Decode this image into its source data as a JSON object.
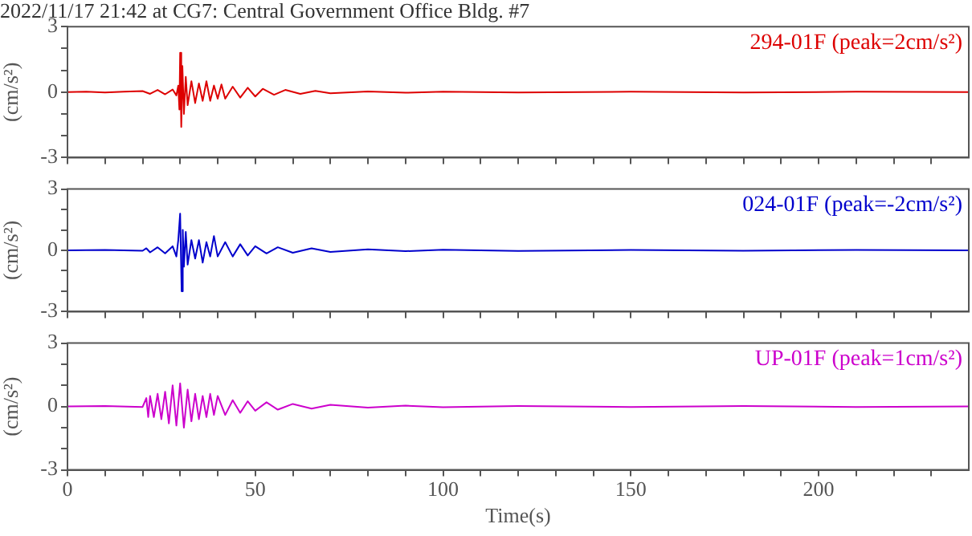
{
  "chart_data": [
    {
      "type": "line",
      "title": "2022/11/17 21:42 at CG7: Central Government Office Bldg. #7",
      "ylabel": "(cm/s²)",
      "annotations": [
        "294-01F (peak=2cm/s²)"
      ],
      "tick_labels": "y",
      "x": [
        0,
        5,
        10,
        15,
        20,
        22,
        24,
        26,
        28,
        29,
        29.5,
        29.8,
        30,
        30.3,
        30.6,
        31,
        31.5,
        32,
        33,
        34,
        35,
        36,
        37,
        38,
        39,
        40,
        41,
        42,
        44,
        46,
        48,
        50,
        52,
        55,
        58,
        62,
        66,
        70,
        80,
        90,
        100,
        120,
        150,
        180,
        210,
        240
      ],
      "series": [
        {
          "color": "#dd0000",
          "values": [
            0,
            0.02,
            -0.02,
            0.02,
            0.05,
            -0.08,
            0.1,
            -0.1,
            0.12,
            -0.15,
            0.3,
            -0.8,
            1.8,
            -1.6,
            1.2,
            -1.0,
            0.7,
            -0.6,
            0.5,
            -0.5,
            0.4,
            -0.4,
            0.5,
            -0.4,
            0.3,
            -0.3,
            0.35,
            -0.3,
            0.25,
            -0.25,
            0.2,
            -0.2,
            0.15,
            -0.12,
            0.1,
            -0.08,
            0.06,
            -0.05,
            0.03,
            -0.03,
            0.02,
            -0.02,
            0.02,
            -0.02,
            0.02,
            0
          ]
        }
      ],
      "xlim": [
        0,
        240
      ],
      "xticks": [
        0,
        {
          "value": 10,
          "label": null
        },
        {
          "value": 20,
          "label": null
        },
        {
          "value": 30,
          "label": null
        },
        {
          "value": 40,
          "label": null
        },
        50,
        {
          "value": 60,
          "label": null
        },
        {
          "value": 70,
          "label": null
        },
        {
          "value": 80,
          "label": null
        },
        {
          "value": 90,
          "label": null
        },
        100,
        {
          "value": 110,
          "label": null
        },
        {
          "value": 120,
          "label": null
        },
        {
          "value": 130,
          "label": null
        },
        {
          "value": 140,
          "label": null
        },
        150,
        {
          "value": 160,
          "label": null
        },
        {
          "value": 170,
          "label": null
        },
        {
          "value": 180,
          "label": null
        },
        {
          "value": 190,
          "label": null
        },
        200,
        {
          "value": 210,
          "label": null
        },
        {
          "value": 220,
          "label": null
        },
        {
          "value": 230,
          "label": null
        }
      ],
      "ylim": [
        -3,
        3
      ],
      "yticks": [
        -3,
        {
          "value": -2,
          "label": null
        },
        {
          "value": -1,
          "label": null
        },
        0,
        {
          "value": 1,
          "label": null
        },
        {
          "value": 2,
          "label": null
        },
        3
      ]
    },
    {
      "type": "line",
      "ylabel": "(cm/s²)",
      "annotations": [
        "024-01F (peak=-2cm/s²)"
      ],
      "tick_labels": "y",
      "x": [
        0,
        10,
        20,
        21,
        22,
        24,
        26,
        28,
        29,
        29.5,
        30,
        30.4,
        30.7,
        31,
        31.5,
        32,
        33,
        34,
        35,
        36,
        37,
        38,
        39,
        40,
        42,
        44,
        46,
        48,
        50,
        53,
        56,
        60,
        65,
        70,
        80,
        90,
        100,
        120,
        150,
        180,
        210,
        240
      ],
      "series": [
        {
          "color": "#0000cc",
          "values": [
            0,
            0.02,
            -0.02,
            0.1,
            -0.1,
            0.15,
            -0.15,
            0.2,
            -0.3,
            0.5,
            1.8,
            -2.0,
            1.0,
            -0.8,
            0.9,
            -0.7,
            0.5,
            -0.4,
            0.5,
            -0.6,
            0.4,
            -0.3,
            0.7,
            -0.3,
            0.4,
            -0.3,
            0.3,
            -0.25,
            0.2,
            -0.15,
            0.15,
            -0.12,
            0.1,
            -0.08,
            0.05,
            -0.04,
            0.03,
            -0.03,
            0.02,
            -0.02,
            0.02,
            0
          ]
        }
      ],
      "xlim": [
        0,
        240
      ],
      "xticks": [
        0,
        {
          "value": 10,
          "label": null
        },
        {
          "value": 20,
          "label": null
        },
        {
          "value": 30,
          "label": null
        },
        {
          "value": 40,
          "label": null
        },
        50,
        {
          "value": 60,
          "label": null
        },
        {
          "value": 70,
          "label": null
        },
        {
          "value": 80,
          "label": null
        },
        {
          "value": 90,
          "label": null
        },
        100,
        {
          "value": 110,
          "label": null
        },
        {
          "value": 120,
          "label": null
        },
        {
          "value": 130,
          "label": null
        },
        {
          "value": 140,
          "label": null
        },
        150,
        {
          "value": 160,
          "label": null
        },
        {
          "value": 170,
          "label": null
        },
        {
          "value": 180,
          "label": null
        },
        {
          "value": 190,
          "label": null
        },
        200,
        {
          "value": 210,
          "label": null
        },
        {
          "value": 220,
          "label": null
        },
        {
          "value": 230,
          "label": null
        }
      ],
      "ylim": [
        -3,
        3
      ],
      "yticks": [
        -3,
        {
          "value": -2,
          "label": null
        },
        {
          "value": -1,
          "label": null
        },
        0,
        {
          "value": 1,
          "label": null
        },
        {
          "value": 2,
          "label": null
        },
        3
      ]
    },
    {
      "type": "line",
      "xlabel": "Time(s)",
      "ylabel": "(cm/s²)",
      "annotations": [
        "UP-01F (peak=1cm/s²)"
      ],
      "x": [
        0,
        10,
        20,
        21,
        21.5,
        22,
        23,
        24,
        25,
        26,
        27,
        28,
        29,
        30,
        31,
        32,
        33,
        34,
        35,
        36,
        37,
        38,
        39,
        40,
        42,
        44,
        46,
        48,
        50,
        53,
        56,
        60,
        65,
        70,
        80,
        90,
        100,
        120,
        150,
        180,
        210,
        240
      ],
      "series": [
        {
          "color": "#cc00cc",
          "values": [
            0,
            0.02,
            -0.02,
            0.4,
            -0.5,
            0.5,
            -0.5,
            0.6,
            -0.6,
            0.7,
            -0.8,
            1.0,
            -0.9,
            1.1,
            -1.0,
            0.8,
            -0.7,
            0.6,
            -0.6,
            0.5,
            -0.5,
            0.6,
            -0.4,
            0.5,
            -0.4,
            0.3,
            -0.3,
            0.25,
            -0.2,
            0.2,
            -0.15,
            0.12,
            -0.1,
            0.08,
            -0.05,
            0.04,
            -0.03,
            0.02,
            -0.02,
            0.02,
            -0.02,
            0
          ]
        }
      ],
      "xlim": [
        0,
        240
      ],
      "xticks": [
        0,
        {
          "value": 10,
          "label": null
        },
        {
          "value": 20,
          "label": null
        },
        {
          "value": 30,
          "label": null
        },
        {
          "value": 40,
          "label": null
        },
        50,
        {
          "value": 60,
          "label": null
        },
        {
          "value": 70,
          "label": null
        },
        {
          "value": 80,
          "label": null
        },
        {
          "value": 90,
          "label": null
        },
        100,
        {
          "value": 110,
          "label": null
        },
        {
          "value": 120,
          "label": null
        },
        {
          "value": 130,
          "label": null
        },
        {
          "value": 140,
          "label": null
        },
        150,
        {
          "value": 160,
          "label": null
        },
        {
          "value": 170,
          "label": null
        },
        {
          "value": 180,
          "label": null
        },
        {
          "value": 190,
          "label": null
        },
        200,
        {
          "value": 210,
          "label": null
        },
        {
          "value": 220,
          "label": null
        },
        {
          "value": 230,
          "label": null
        }
      ],
      "ylim": [
        -3,
        3
      ],
      "yticks": [
        -3,
        {
          "value": -2,
          "label": null
        },
        {
          "value": -1,
          "label": null
        },
        0,
        {
          "value": 1,
          "label": null
        },
        {
          "value": 2,
          "label": null
        },
        3
      ]
    }
  ]
}
